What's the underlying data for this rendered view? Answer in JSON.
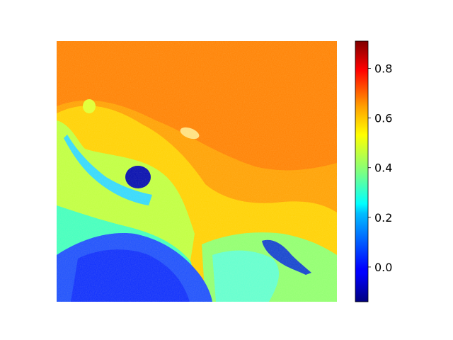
{
  "chart_data": {
    "type": "heatmap",
    "title": "",
    "xlabel": "",
    "ylabel": "",
    "colormap": "jet",
    "colorbar": {
      "vmin": -0.14,
      "vmax": 0.91,
      "ticks": [
        0.0,
        0.2,
        0.4,
        0.6,
        0.8
      ],
      "tick_labels": [
        "0.0",
        "0.2",
        "0.4",
        "0.6",
        "0.8"
      ]
    },
    "axes_visible": false,
    "regions": [
      {
        "name": "background",
        "value": 0.66
      },
      {
        "name": "mid-slope",
        "value": 0.5
      },
      {
        "name": "lower-left-mass",
        "value": 0.05
      },
      {
        "name": "left-dark-blob",
        "value": -0.05
      },
      {
        "name": "right-dark-blob",
        "value": 0.02
      },
      {
        "name": "lower-right-area",
        "value": 0.38
      }
    ]
  }
}
